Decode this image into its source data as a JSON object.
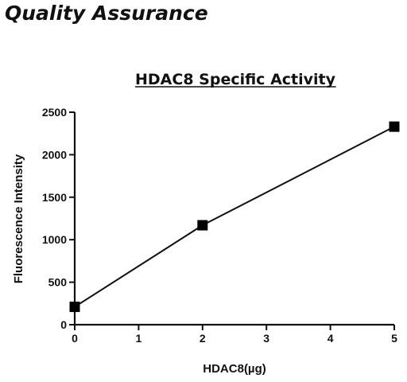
{
  "page": {
    "heading": "Quality Assurance"
  },
  "chart_data": {
    "type": "line",
    "title": "HDAC8 Specific Activity",
    "xlabel": "HDAC8(µg)",
    "ylabel": "Fluorescence Intensity",
    "xlim": [
      0,
      5
    ],
    "ylim": [
      0,
      2500
    ],
    "xticks": [
      0,
      1,
      2,
      3,
      4,
      5
    ],
    "yticks": [
      0,
      500,
      1000,
      1500,
      2000,
      2500
    ],
    "grid": false,
    "series": [
      {
        "x": [
          0,
          2,
          5
        ],
        "y": [
          210,
          1170,
          2330
        ]
      }
    ]
  }
}
